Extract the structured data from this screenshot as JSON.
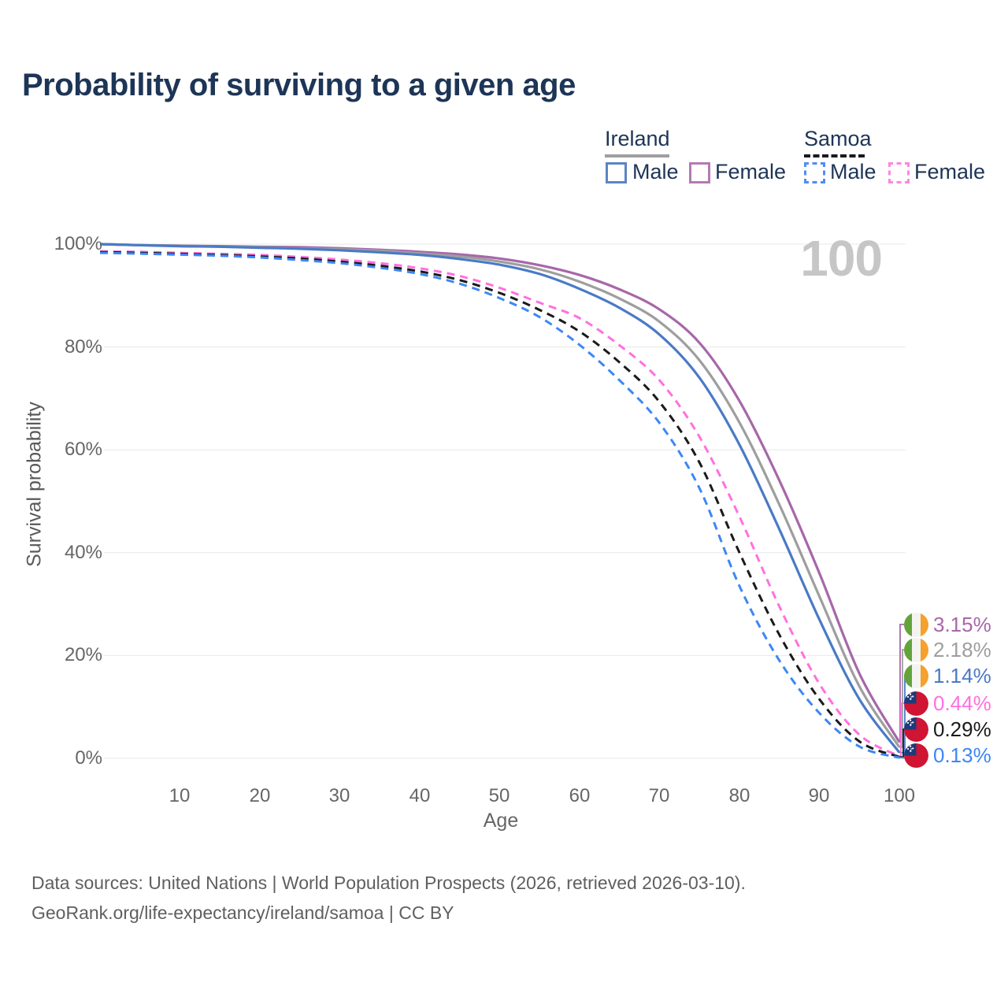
{
  "page": {
    "title": "Probability of surviving to a given age",
    "hover_value": "100"
  },
  "legend": {
    "groups": [
      {
        "label": "Ireland",
        "underline_color": "#9e9e9e",
        "underline_style": "solid",
        "items": [
          {
            "label": "Male",
            "color": "#5b84c4",
            "dashed": false
          },
          {
            "label": "Female",
            "color": "#b37ab3",
            "dashed": false
          }
        ]
      },
      {
        "label": "Samoa",
        "underline_color": "#1a1a1a",
        "underline_style": "dashed",
        "items": [
          {
            "label": "Male",
            "color": "#4f8df5",
            "dashed": true
          },
          {
            "label": "Female",
            "color": "#fb87e0",
            "dashed": true
          }
        ]
      }
    ]
  },
  "chart_data": {
    "type": "line",
    "title": "Probability of surviving to a given age",
    "xlabel": "Age",
    "ylabel": "Survival probability",
    "xlim": [
      0,
      100
    ],
    "ylim": [
      0,
      100
    ],
    "grid": "horizontal",
    "x_tick_labels": [
      "10",
      "20",
      "30",
      "40",
      "50",
      "60",
      "70",
      "80",
      "90",
      "100"
    ],
    "y_tick_labels": [
      "100%",
      "80%",
      "60%",
      "40%",
      "20%",
      "0%"
    ],
    "y_gridlines": [
      100,
      80,
      60,
      40,
      20,
      0
    ],
    "hovered_age": 100,
    "x": [
      0,
      5,
      10,
      15,
      20,
      25,
      30,
      35,
      40,
      45,
      50,
      55,
      60,
      65,
      70,
      75,
      80,
      85,
      90,
      95,
      100
    ],
    "series": [
      {
        "name": "Ireland Female",
        "country": "Ireland",
        "sex": "Female",
        "color": "#a767a9",
        "line_style": "solid",
        "end_label": "3.15%",
        "values": [
          100,
          99.8,
          99.7,
          99.6,
          99.5,
          99.4,
          99.2,
          98.9,
          98.5,
          98.0,
          97.2,
          95.9,
          94.0,
          91.2,
          87.3,
          80.8,
          69.5,
          54.0,
          36.0,
          16.5,
          3.15
        ]
      },
      {
        "name": "Ireland",
        "country": "Ireland",
        "sex": "Both",
        "color": "#9e9e9e",
        "line_style": "solid",
        "end_label": "2.18%",
        "values": [
          100,
          99.8,
          99.7,
          99.5,
          99.4,
          99.2,
          99.0,
          98.7,
          98.2,
          97.6,
          96.6,
          95.1,
          92.7,
          89.4,
          84.9,
          77.4,
          65.3,
          49.3,
          31.5,
          14.0,
          2.18
        ]
      },
      {
        "name": "Ireland Male",
        "country": "Ireland",
        "sex": "Male",
        "color": "#4a7ac6",
        "line_style": "solid",
        "end_label": "1.14%",
        "values": [
          100,
          99.8,
          99.6,
          99.5,
          99.3,
          99.1,
          98.8,
          98.4,
          97.9,
          97.1,
          96.0,
          94.2,
          91.3,
          87.6,
          82.4,
          74.0,
          61.0,
          44.5,
          27.0,
          11.5,
          1.14
        ]
      },
      {
        "name": "Samoa Female",
        "country": "Samoa",
        "sex": "Female",
        "color": "#ff70e0",
        "line_style": "dashed",
        "end_label": "0.44%",
        "values": [
          98.6,
          98.5,
          98.3,
          98.1,
          97.9,
          97.5,
          97.0,
          96.3,
          95.3,
          93.8,
          91.5,
          88.6,
          85.6,
          80.3,
          73.5,
          62.5,
          47.0,
          29.5,
          14.5,
          4.6,
          0.44
        ]
      },
      {
        "name": "Samoa",
        "country": "Samoa",
        "sex": "Both",
        "color": "#1a1a1a",
        "line_style": "dashed",
        "end_label": "0.29%",
        "values": [
          98.45,
          98.3,
          98.1,
          97.9,
          97.6,
          97.2,
          96.6,
          95.8,
          94.7,
          93.0,
          90.5,
          87.2,
          83.0,
          77.0,
          69.3,
          57.5,
          40.0,
          24.0,
          11.5,
          3.3,
          0.29
        ]
      },
      {
        "name": "Samoa Male",
        "country": "Samoa",
        "sex": "Male",
        "color": "#3d87f5",
        "line_style": "dashed",
        "end_label": "0.13%",
        "values": [
          98.3,
          98.15,
          97.95,
          97.75,
          97.4,
          96.9,
          96.3,
          95.4,
          94.2,
          92.3,
          89.5,
          85.8,
          80.4,
          73.5,
          65.2,
          52.5,
          33.5,
          19.0,
          8.8,
          2.3,
          0.13
        ]
      }
    ]
  },
  "footer": {
    "line1": "Data sources: United Nations | World Population Prospects (2026, retrieved 2026-03-10).",
    "line2": "GeoRank.org/life-expectancy/ireland/samoa | CC BY"
  }
}
